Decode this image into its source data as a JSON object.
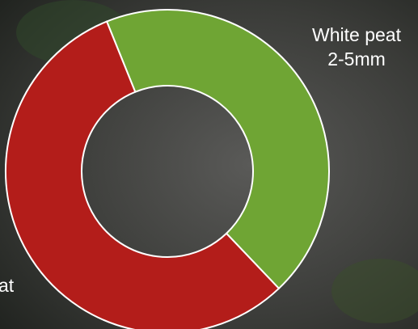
{
  "chart_data": {
    "type": "donut",
    "categories": [
      [
        "White peat",
        "2-5mm"
      ],
      [
        "at"
      ]
    ],
    "values": [
      44,
      56
    ],
    "colors": [
      "#6fa534",
      "#b31d1a"
    ]
  }
}
